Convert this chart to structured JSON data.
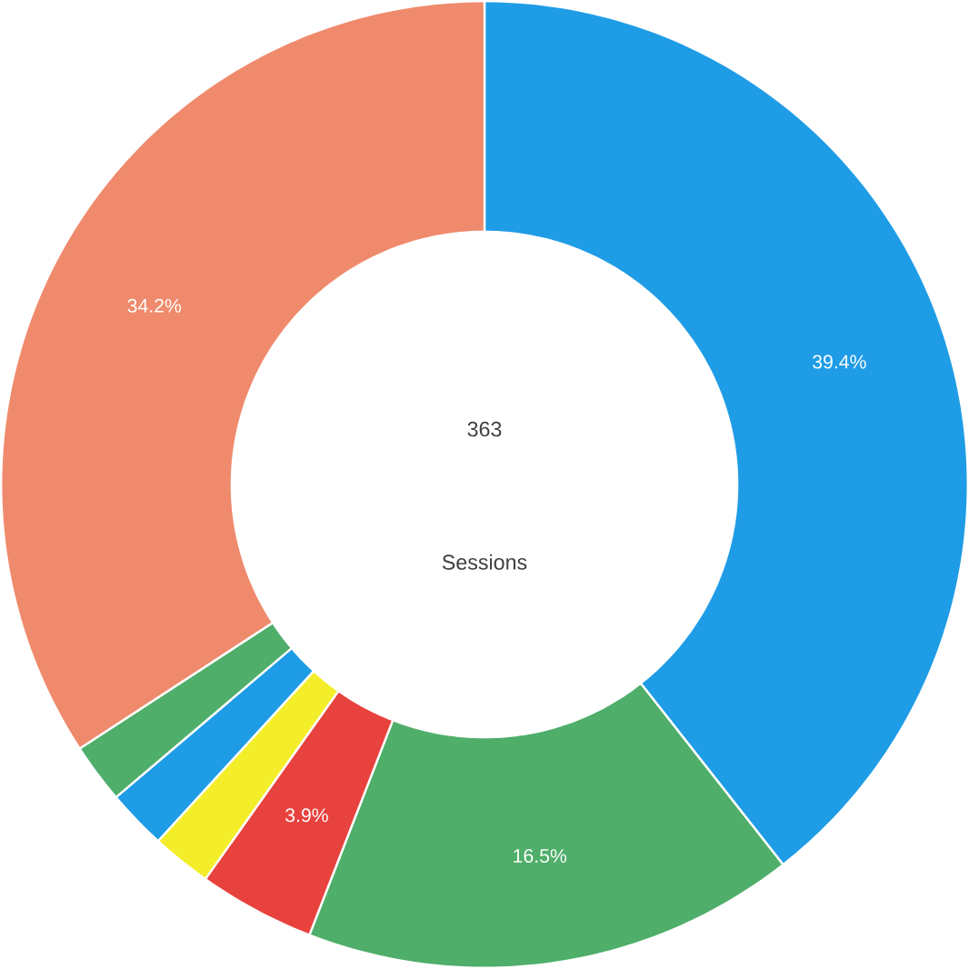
{
  "chart_data": {
    "type": "donut",
    "categories": [
      null,
      null,
      null,
      null,
      null,
      null,
      null
    ],
    "values": [
      39.4,
      16.5,
      3.9,
      2.0,
      2.0,
      2.0,
      34.2
    ],
    "colors": [
      "#1f9ce6",
      "#4fae6a",
      "#e8423e",
      "#f4ee2a",
      "#1f9ce6",
      "#4fae6a",
      "#ef8a6c"
    ],
    "value_labels": [
      "39.4%",
      "16.5%",
      "3.9%",
      null,
      null,
      null,
      "34.2%"
    ],
    "annotations": [
      "363",
      "Sessions"
    ]
  }
}
